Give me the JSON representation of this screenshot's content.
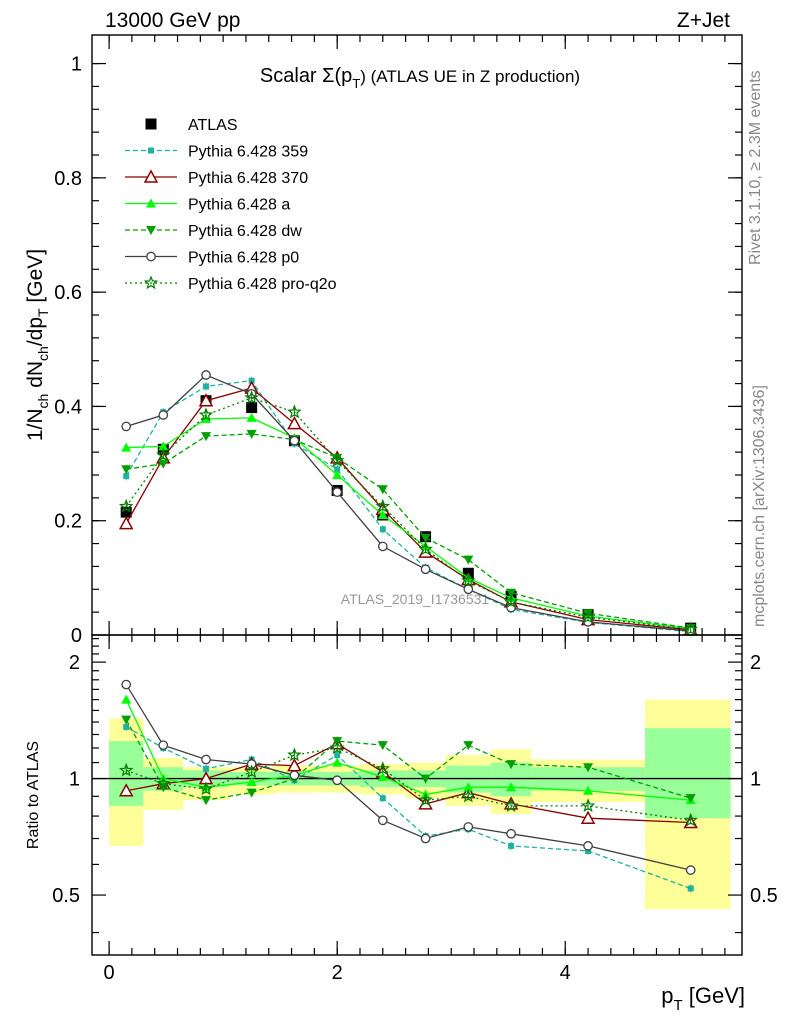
{
  "header": {
    "left": "13000 GeV pp",
    "right": "Z+Jet"
  },
  "side": {
    "rivet": "Rivet 3.1.10, ≥ 2.3M events",
    "mcplots": "mcplots.cern.ch [arXiv:1306.3436]"
  },
  "watermark": "ATLAS_2019_I1736531",
  "chart_data": [
    {
      "type": "line",
      "title_main": "Scalar Σ(p",
      "title_sub": "T",
      "title_tail": ")  (ATLAS UE in Z production)",
      "ylabel": "1/N_ch dN_ch/dp_T [GeV]",
      "xlim": [
        -0.15,
        5.55
      ],
      "ylim": [
        0,
        1.05
      ],
      "yticks": [
        0,
        0.2,
        0.4,
        0.6,
        0.8,
        1
      ],
      "ytick_labels": [
        "0",
        "0.2",
        "0.4",
        "0.6",
        "0.8",
        "1"
      ],
      "x": [
        0.15,
        0.475,
        0.85,
        1.25,
        1.625,
        2.0,
        2.4,
        2.775,
        3.15,
        3.525,
        4.2,
        5.1
      ],
      "series": [
        {
          "name": "ATLAS",
          "color": "#000000",
          "dash": "",
          "marker": "square",
          "values": [
            0.215,
            0.325,
            0.41,
            0.398,
            0.34,
            0.253,
            0.21,
            0.172,
            0.108,
            0.068,
            0.036,
            0.012
          ]
        },
        {
          "name": "Pythia 6.428 359",
          "color": "#20b2a0",
          "dash": "5,3",
          "marker": "smallsquare",
          "values": [
            0.278,
            0.39,
            0.435,
            0.445,
            0.335,
            0.29,
            0.185,
            0.118,
            0.08,
            0.045,
            0.022,
            0.006
          ]
        },
        {
          "name": "Pythia 6.428 370",
          "color": "#8b0000",
          "dash": "",
          "marker": "triangle-open",
          "values": [
            0.195,
            0.31,
            0.41,
            0.432,
            0.37,
            0.31,
            0.22,
            0.145,
            0.097,
            0.058,
            0.027,
            0.009
          ]
        },
        {
          "name": "Pythia 6.428 a",
          "color": "#00ff00",
          "dash": "",
          "marker": "triangle",
          "values": [
            0.328,
            0.33,
            0.378,
            0.38,
            0.345,
            0.28,
            0.21,
            0.155,
            0.1,
            0.065,
            0.033,
            0.011
          ]
        },
        {
          "name": "Pythia 6.428 dw",
          "color": "#00a000",
          "dash": "5,3",
          "marker": "triangle-down",
          "values": [
            0.29,
            0.3,
            0.348,
            0.352,
            0.342,
            0.31,
            0.255,
            0.17,
            0.132,
            0.074,
            0.038,
            0.012
          ]
        },
        {
          "name": "Pythia 6.428 p0",
          "color": "#404040",
          "dash": "",
          "marker": "circle-open",
          "values": [
            0.365,
            0.385,
            0.455,
            0.422,
            0.34,
            0.25,
            0.155,
            0.115,
            0.08,
            0.048,
            0.023,
            0.007
          ]
        },
        {
          "name": "Pythia 6.428 pro-q2o",
          "color": "#008000",
          "dash": "2,3",
          "marker": "star",
          "values": [
            0.225,
            0.315,
            0.385,
            0.415,
            0.39,
            0.305,
            0.225,
            0.15,
            0.095,
            0.058,
            0.031,
            0.01
          ]
        }
      ]
    },
    {
      "type": "line",
      "ylabel": "Ratio to ATLAS",
      "xlabel": "p_T [GeV]",
      "xlim": [
        -0.15,
        5.55
      ],
      "ylim": [
        0.35,
        2.35
      ],
      "xticks": [
        0,
        2,
        4
      ],
      "xtick_labels": [
        "0",
        "2",
        "4"
      ],
      "yticks": [
        0.5,
        1,
        2
      ],
      "ytick_labels": [
        "0.5",
        "1",
        "2"
      ],
      "bands": {
        "edges": [
          0,
          0.3,
          0.65,
          1.05,
          1.45,
          1.8,
          2.2,
          2.6,
          2.95,
          3.35,
          3.7,
          4.7,
          5.45
        ],
        "yellow": [
          [
            0.67,
            1.43
          ],
          [
            0.83,
            1.13
          ],
          [
            0.88,
            1.07
          ],
          [
            0.91,
            1.07
          ],
          [
            0.92,
            1.08
          ],
          [
            0.92,
            1.08
          ],
          [
            0.91,
            1.09
          ],
          [
            0.89,
            1.1
          ],
          [
            0.85,
            1.15
          ],
          [
            0.81,
            1.19
          ],
          [
            0.87,
            1.12
          ],
          [
            0.46,
            1.6
          ]
        ],
        "green": [
          [
            0.85,
            1.25
          ],
          [
            0.93,
            1.07
          ],
          [
            0.95,
            1.05
          ],
          [
            0.96,
            1.04
          ],
          [
            0.96,
            1.04
          ],
          [
            0.96,
            1.04
          ],
          [
            0.95,
            1.05
          ],
          [
            0.95,
            1.05
          ],
          [
            0.92,
            1.08
          ],
          [
            0.9,
            1.1
          ],
          [
            0.93,
            1.07
          ],
          [
            0.79,
            1.35
          ]
        ]
      },
      "x": [
        0.15,
        0.475,
        0.85,
        1.25,
        1.625,
        2.0,
        2.4,
        2.775,
        3.15,
        3.525,
        4.2,
        5.1
      ],
      "series": [
        {
          "name": "Pythia 6.428 359",
          "color": "#20b2a0",
          "dash": "5,3",
          "marker": "smallsquare",
          "values": [
            1.36,
            1.2,
            1.06,
            1.12,
            0.99,
            1.15,
            0.89,
            0.71,
            0.74,
            0.67,
            0.65,
            0.52
          ]
        },
        {
          "name": "Pythia 6.428 370",
          "color": "#8b0000",
          "dash": "",
          "marker": "triangle-open",
          "values": [
            0.93,
            0.97,
            1.0,
            1.09,
            1.08,
            1.23,
            1.04,
            0.86,
            0.92,
            0.86,
            0.79,
            0.77
          ]
        },
        {
          "name": "Pythia 6.428 a",
          "color": "#00ff00",
          "dash": "",
          "marker": "triangle",
          "values": [
            1.6,
            1.0,
            0.95,
            0.98,
            1.02,
            1.1,
            1.01,
            0.91,
            0.95,
            0.95,
            0.93,
            0.88
          ]
        },
        {
          "name": "Pythia 6.428 dw",
          "color": "#00a000",
          "dash": "5,3",
          "marker": "triangle-down",
          "values": [
            1.42,
            0.95,
            0.88,
            0.92,
            1.0,
            1.25,
            1.22,
            1.0,
            1.22,
            1.09,
            1.07,
            0.89
          ]
        },
        {
          "name": "Pythia 6.428 p0",
          "color": "#404040",
          "dash": "",
          "marker": "circle-open",
          "values": [
            1.75,
            1.22,
            1.12,
            1.09,
            1.02,
            0.99,
            0.78,
            0.7,
            0.75,
            0.72,
            0.67,
            0.58
          ]
        },
        {
          "name": "Pythia 6.428 pro-q2o",
          "color": "#008000",
          "dash": "2,3",
          "marker": "star",
          "values": [
            1.05,
            0.97,
            0.94,
            1.04,
            1.15,
            1.2,
            1.06,
            0.88,
            0.9,
            0.85,
            0.85,
            0.78
          ]
        }
      ]
    }
  ]
}
